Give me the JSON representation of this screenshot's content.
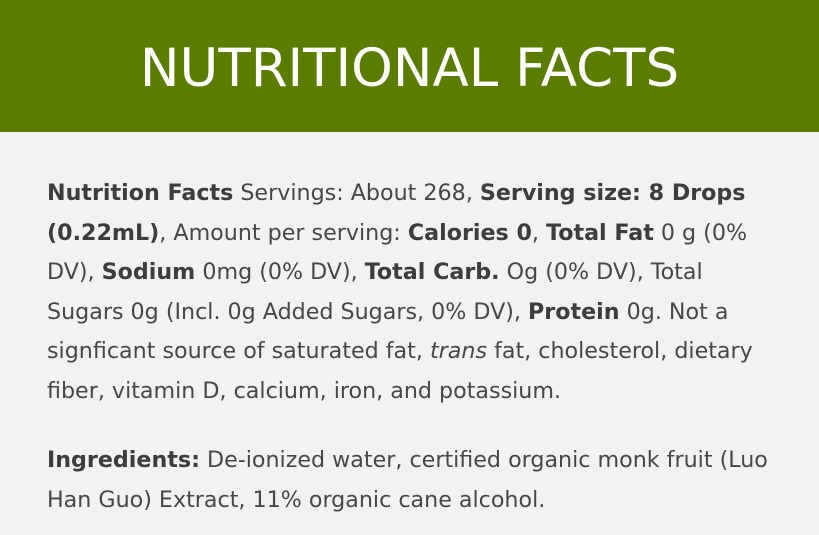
{
  "header": {
    "title": "NUTRITIONAL FACTS"
  },
  "nutrition": [
    {
      "text": "Nutrition Facts",
      "bold": true
    },
    {
      "text": " Servings: About 268, "
    },
    {
      "text": "Serving size: 8 Drops (0.22mL)",
      "bold": true
    },
    {
      "text": ", Amount per serving: "
    },
    {
      "text": "Calories 0",
      "bold": true
    },
    {
      "text": ", "
    },
    {
      "text": "Total Fat",
      "bold": true
    },
    {
      "text": " 0 g (0% DV), "
    },
    {
      "text": "Sodium",
      "bold": true
    },
    {
      "text": " 0mg (0% DV), "
    },
    {
      "text": "Total Carb.",
      "bold": true
    },
    {
      "text": " Og (0% DV), Total Sugars 0g (Incl. 0g Added Sugars, 0% DV), "
    },
    {
      "text": "Protein",
      "bold": true
    },
    {
      "text": " 0g. Not a signficant source of saturated fat, "
    },
    {
      "text": "trans",
      "italic": true
    },
    {
      "text": " fat, cholesterol, dietary fiber, vitamin D, calcium, iron, and potassium."
    }
  ],
  "ingredients": {
    "label": "Ingredients:",
    "text": " De-ionized water, certified organic monk fruit (Luo Han Guo) Extract, 11% organic cane alcohol."
  }
}
